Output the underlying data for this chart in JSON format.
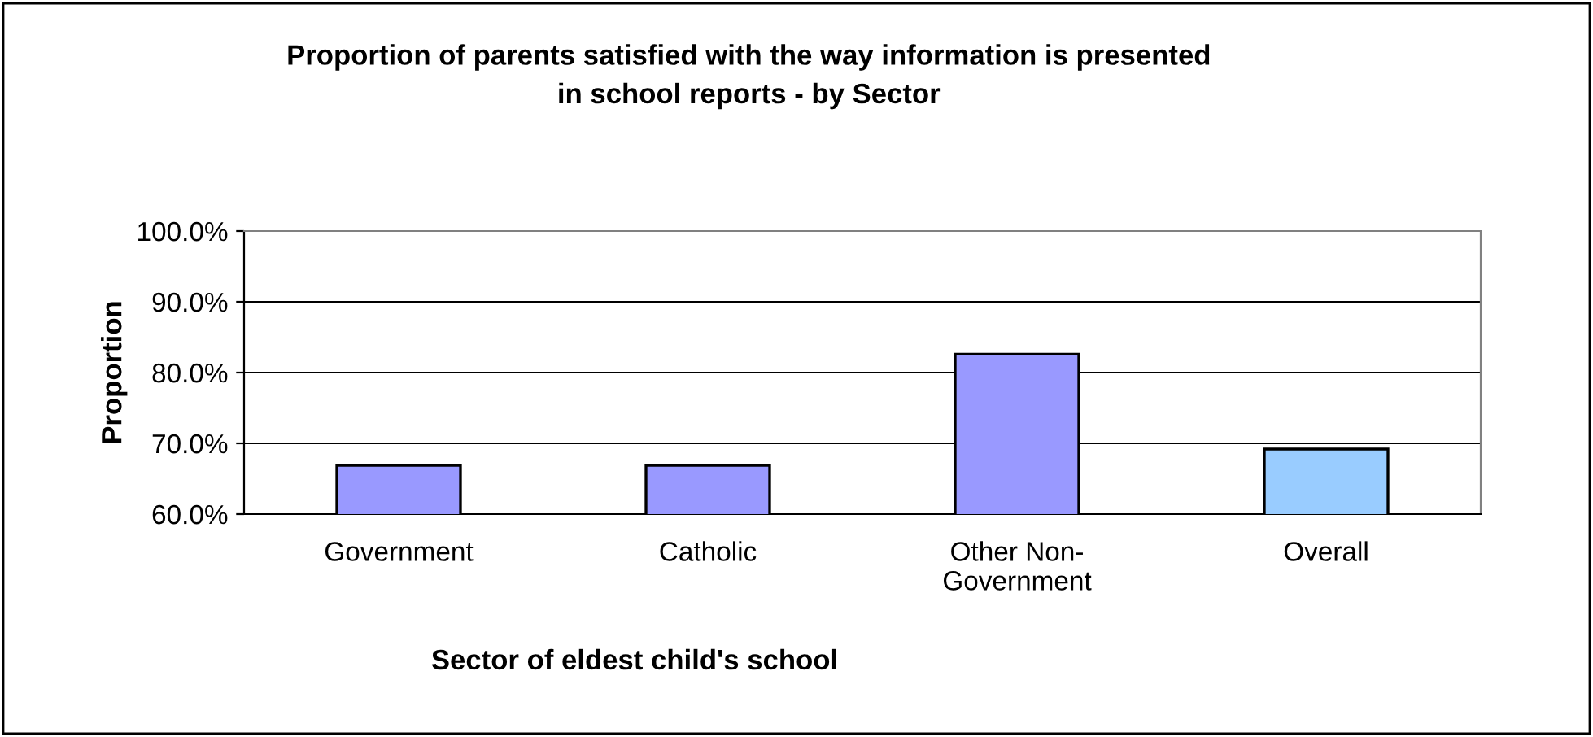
{
  "chart_data": {
    "type": "bar",
    "title": "Proportion of parents satisfied with the way information is presented\nin school reports - by Sector",
    "xlabel": "Sector of eldest child's school",
    "ylabel": "Proportion",
    "categories": [
      "Government",
      "Catholic",
      "Other Non-\nGovernment",
      "Overall"
    ],
    "values": [
      66.9,
      66.9,
      82.6,
      69.2
    ],
    "colors": [
      "#9999ff",
      "#9999ff",
      "#9999ff",
      "#99ccff"
    ],
    "ylim": [
      60,
      100
    ],
    "yticks": [
      {
        "value": 60,
        "label": "60.0%"
      },
      {
        "value": 70,
        "label": "70.0%"
      },
      {
        "value": 80,
        "label": "80.0%"
      },
      {
        "value": 90,
        "label": "90.0%"
      },
      {
        "value": 100,
        "label": "100.0%"
      }
    ],
    "grid": "y",
    "legend": false
  }
}
